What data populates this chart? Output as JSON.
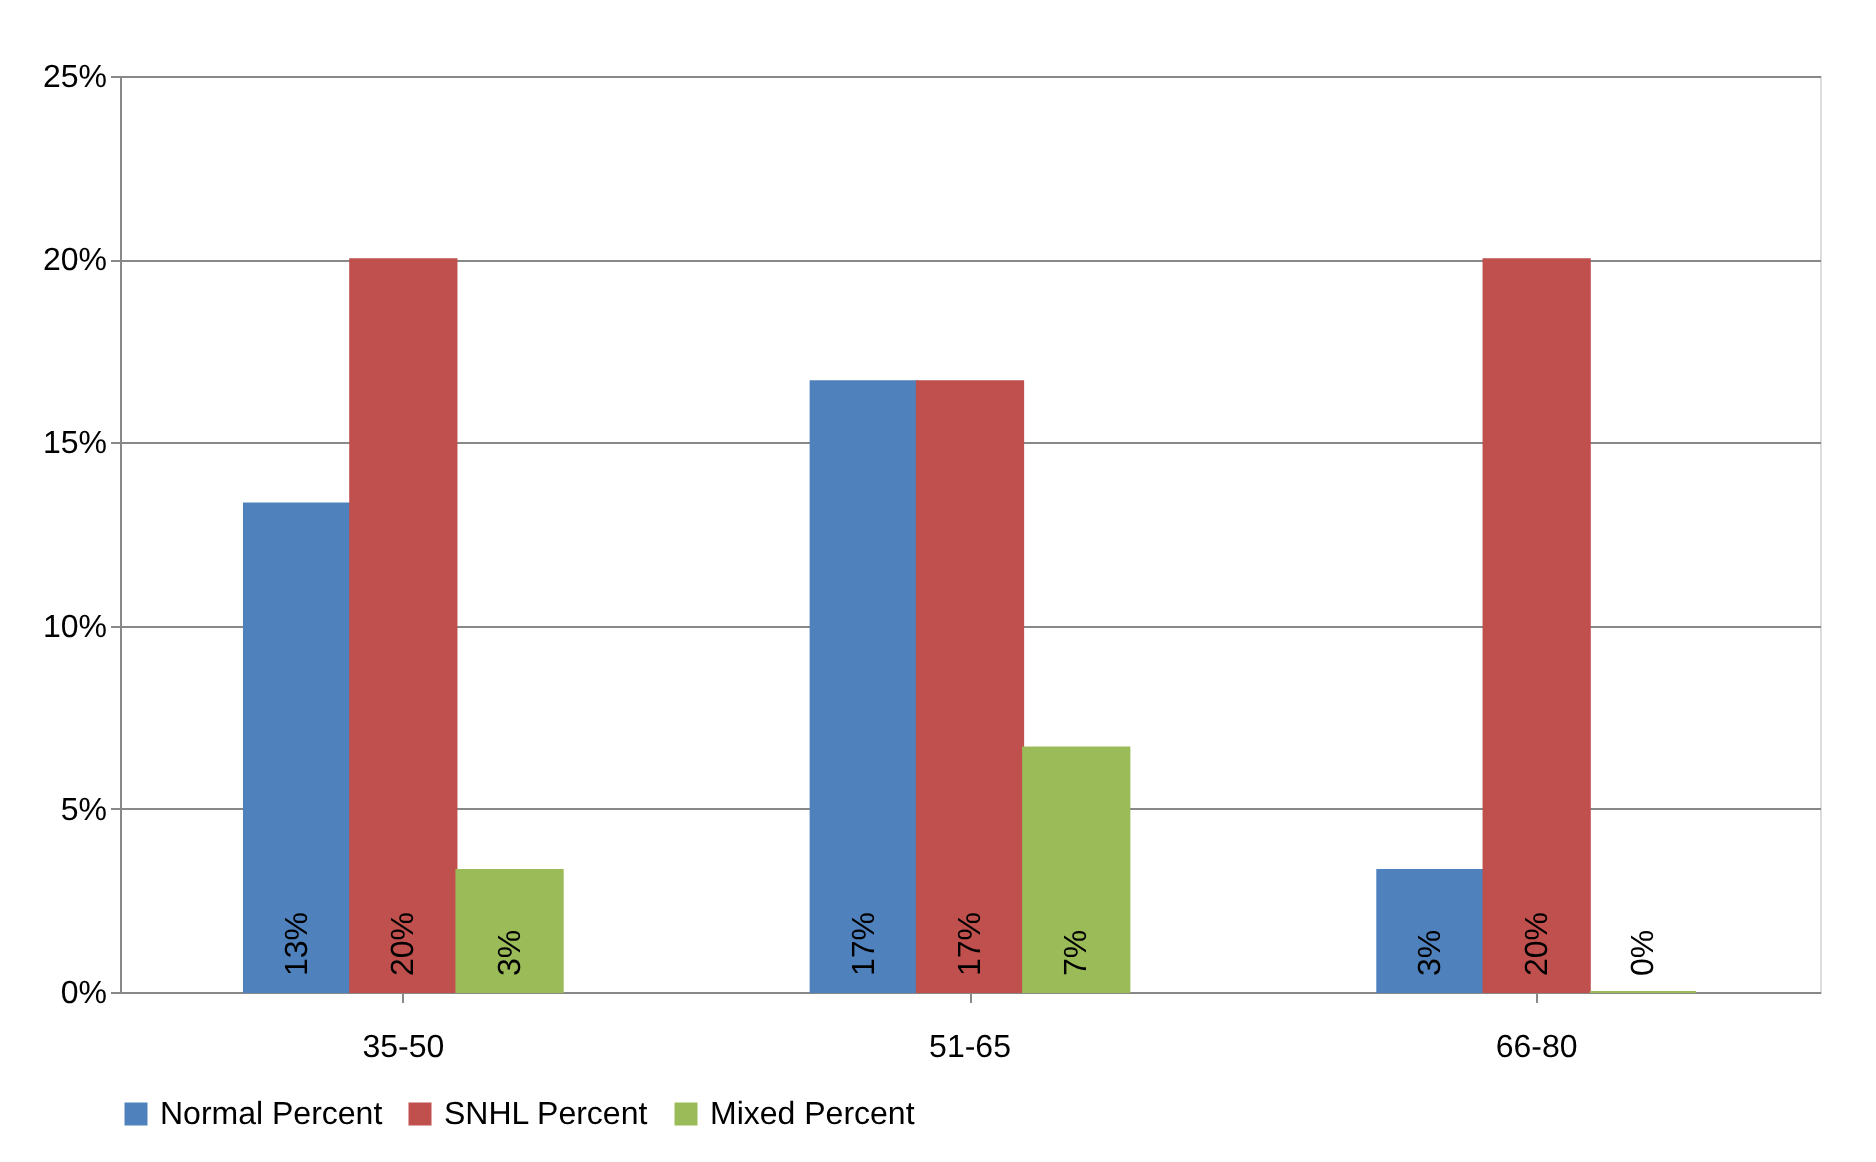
{
  "chart_data": {
    "type": "bar",
    "categories": [
      "35-50",
      "51-65",
      "66-80"
    ],
    "series": [
      {
        "name": "Normal Percent",
        "color": "#4f81bd",
        "values": [
          13.33,
          16.67,
          3.33
        ],
        "value_labels": [
          "13%",
          "17%",
          "3%"
        ]
      },
      {
        "name": "SNHL Percent",
        "color": "#c0504d",
        "values": [
          20,
          16.67,
          20
        ],
        "value_labels": [
          "20%",
          "17%",
          "20%"
        ]
      },
      {
        "name": "Mixed Percent",
        "color": "#9bbb59",
        "values": [
          3.33,
          6.67,
          0
        ],
        "value_labels": [
          "3%",
          "7%",
          "0%"
        ]
      }
    ],
    "ylim": [
      0,
      25
    ],
    "yticks": [
      {
        "value": 0,
        "label": "0%"
      },
      {
        "value": 5,
        "label": "5%"
      },
      {
        "value": 10,
        "label": "10%"
      },
      {
        "value": 15,
        "label": "15%"
      },
      {
        "value": 20,
        "label": "20%"
      },
      {
        "value": 25,
        "label": "25%"
      }
    ],
    "grid": "y",
    "legend": "bottom"
  }
}
